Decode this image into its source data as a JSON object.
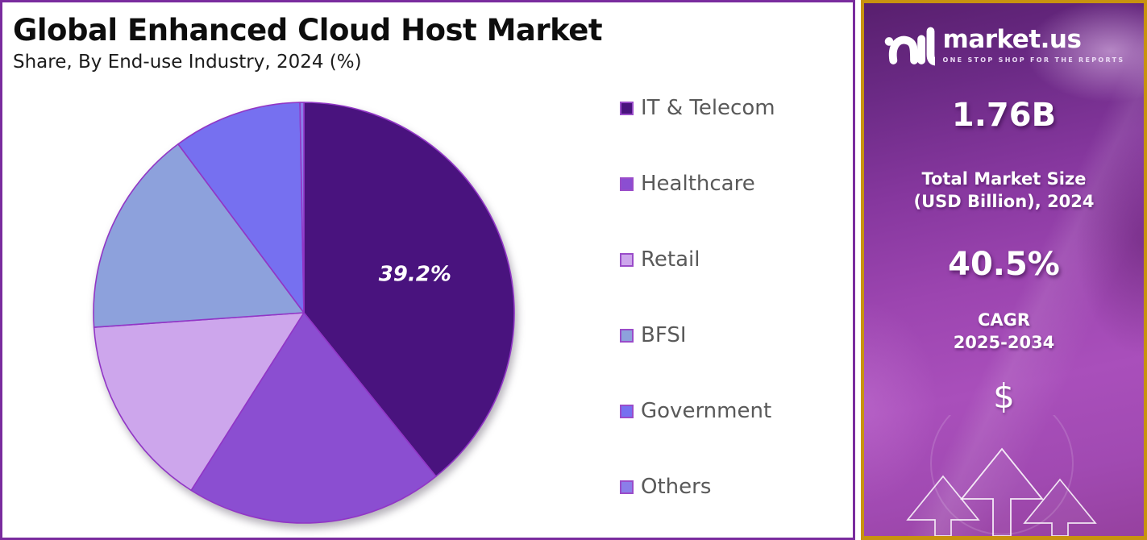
{
  "page": {
    "title": "Global Enhanced Cloud Host Market",
    "subtitle": "Share, By End-use Industry, 2024 (%)"
  },
  "chart_data": {
    "type": "pie",
    "title": "Global Enhanced Cloud Host Market",
    "subtitle": "Share, By End-use Industry, 2024 (%)",
    "unit": "%",
    "start_angle_deg": 0,
    "direction": "clockwise",
    "shown_data_label": "39.2%",
    "stroke_color": "#9136C6",
    "series": [
      {
        "label": "IT & Telecom",
        "value": 39.2,
        "color": "#49137E",
        "data_label": "39.2%"
      },
      {
        "label": "Healthcare",
        "value": 19.8,
        "color": "#8B4ED1"
      },
      {
        "label": "Retail",
        "value": 14.9,
        "color": "#CDA6EC"
      },
      {
        "label": "BFSI",
        "value": 15.9,
        "color": "#8DA1DC"
      },
      {
        "label": "Government",
        "value": 9.9,
        "color": "#7670F0"
      },
      {
        "label": "Others",
        "value": 0.3,
        "color": "#8B7EE9"
      }
    ],
    "legend_position": "right"
  },
  "legend": {
    "swatch_border_color": "#9A4CC9",
    "text_color": "#595959",
    "items": [
      {
        "label": "IT & Telecom",
        "color": "#49137E"
      },
      {
        "label": "Healthcare",
        "color": "#8B4ED1"
      },
      {
        "label": "Retail",
        "color": "#CDA6EC"
      },
      {
        "label": "BFSI",
        "color": "#8DA1DC"
      },
      {
        "label": "Government",
        "color": "#7670F0"
      },
      {
        "label": "Others",
        "color": "#8B7EE9"
      }
    ]
  },
  "sidebar": {
    "logo": {
      "brand": "market.us",
      "tagline": "ONE STOP SHOP FOR THE REPORTS"
    },
    "stats": [
      {
        "value": "1.76B",
        "caption_lines": [
          "Total Market Size",
          "(USD Billion), 2024"
        ]
      },
      {
        "value": "40.5%",
        "caption_lines": [
          "CAGR",
          "2025-2034"
        ]
      }
    ],
    "dollar_symbol": "$",
    "frame_color": "#C8930F",
    "background_accent": "#9C45B0"
  },
  "frame": {
    "main_border_color": "#7A2C9E"
  }
}
